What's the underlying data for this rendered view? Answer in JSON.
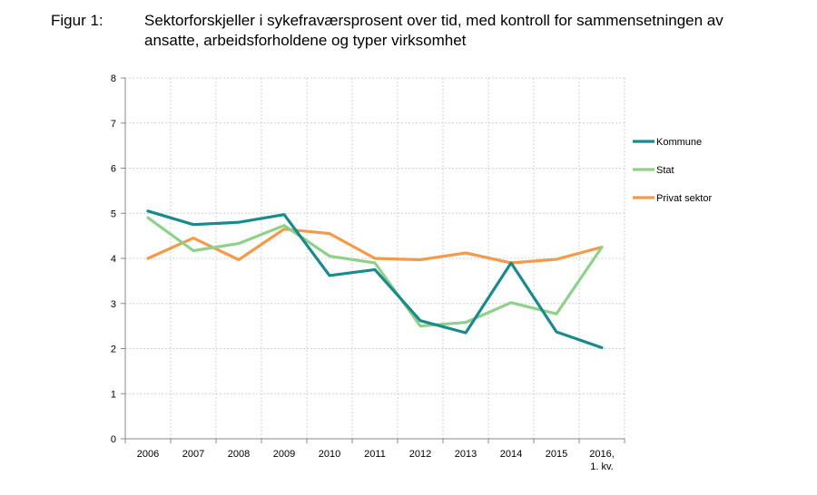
{
  "figure": {
    "label": "Figur 1:",
    "title": "Sektorforskjeller i sykefraværsprosent over tid, med kontroll for sammensetningen av ansatte, arbeidsforholdene og typer virksomhet"
  },
  "chart_data": {
    "type": "line",
    "title": "Sektorforskjeller i sykefraværsprosent over tid, med kontroll for sammensetningen av ansatte, arbeidsforholdene og typer virksomhet",
    "xlabel": "",
    "ylabel": "",
    "categories": [
      "2006",
      "2007",
      "2008",
      "2009",
      "2010",
      "2011",
      "2012",
      "2013",
      "2014",
      "2015",
      "2016, 1. kv."
    ],
    "category_lines": [
      [
        "2006"
      ],
      [
        "2007"
      ],
      [
        "2008"
      ],
      [
        "2009"
      ],
      [
        "2010"
      ],
      [
        "2011"
      ],
      [
        "2012"
      ],
      [
        "2013"
      ],
      [
        "2014"
      ],
      [
        "2015"
      ],
      [
        "2016,",
        "1. kv."
      ]
    ],
    "ylim": [
      0,
      8
    ],
    "yticks": [
      "0",
      "1",
      "2",
      "3",
      "4",
      "5",
      "6",
      "7",
      "8"
    ],
    "grid": true,
    "legend_position": "right",
    "series": [
      {
        "name": "Kommune",
        "color": "#1a8a8c",
        "values": [
          5.05,
          4.75,
          4.8,
          4.97,
          3.62,
          3.75,
          2.62,
          2.35,
          3.9,
          2.37,
          2.02
        ]
      },
      {
        "name": "Stat",
        "color": "#8fd08a",
        "values": [
          4.9,
          4.17,
          4.33,
          4.73,
          4.05,
          3.9,
          2.5,
          2.58,
          3.02,
          2.77,
          4.25
        ]
      },
      {
        "name": "Privat sektor",
        "color": "#f39b4b",
        "values": [
          4.0,
          4.45,
          3.97,
          4.65,
          4.55,
          4.0,
          3.97,
          4.12,
          3.9,
          3.98,
          4.25
        ]
      }
    ]
  }
}
